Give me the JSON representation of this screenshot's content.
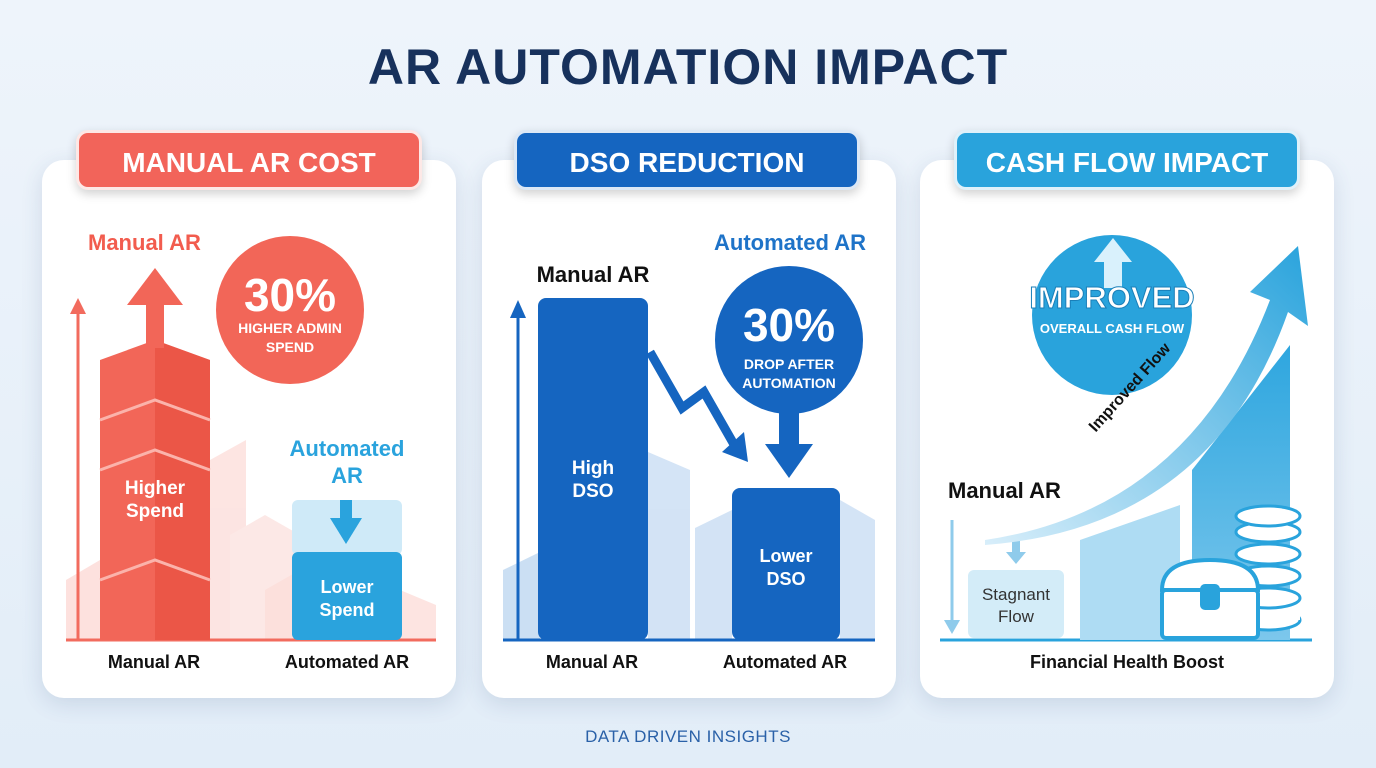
{
  "page": {
    "title": "AR AUTOMATION IMPACT",
    "footer": "DATA DRIVEN INSIGHTS"
  },
  "colors": {
    "title": "#17315c",
    "cost_red": "#f25c4e",
    "dso_blue": "#1565c0",
    "cash_blue": "#29a3dc",
    "footer": "#2a61a8"
  },
  "panels": {
    "cost": {
      "header": "MANUAL AR COST",
      "manual_label": "Manual AR",
      "stat_value": "30%",
      "stat_caption_line1": "HIGHER ADMIN",
      "stat_caption_line2": "SPEND",
      "higher_line1": "Higher",
      "higher_line2": "Spend",
      "automated_line1": "Automated",
      "automated_line2": "AR",
      "lower_line1": "Lower",
      "lower_line2": "Spend",
      "x_label_manual": "Manual AR",
      "x_label_automated": "Automated AR"
    },
    "dso": {
      "header": "DSO REDUCTION",
      "manual_label": "Manual AR",
      "automated_label": "Automated AR",
      "stat_value": "30%",
      "stat_caption_line1": "DROP AFTER",
      "stat_caption_line2": "AUTOMATION",
      "high_line1": "High",
      "high_line2": "DSO",
      "lower_line1": "Lower",
      "lower_line2": "DSO",
      "x_label_manual": "Manual AR",
      "x_label_automated": "Automated AR"
    },
    "cash": {
      "header": "CASH FLOW IMPACT",
      "stat_value": "IMPROVED",
      "stat_caption": "OVERALL CASH FLOW",
      "flow_label": "Improved Flow",
      "manual_label": "Manual AR",
      "stagnant_line1": "Stagnant",
      "stagnant_line2": "Flow",
      "x_label": "Financial Health Boost"
    }
  }
}
